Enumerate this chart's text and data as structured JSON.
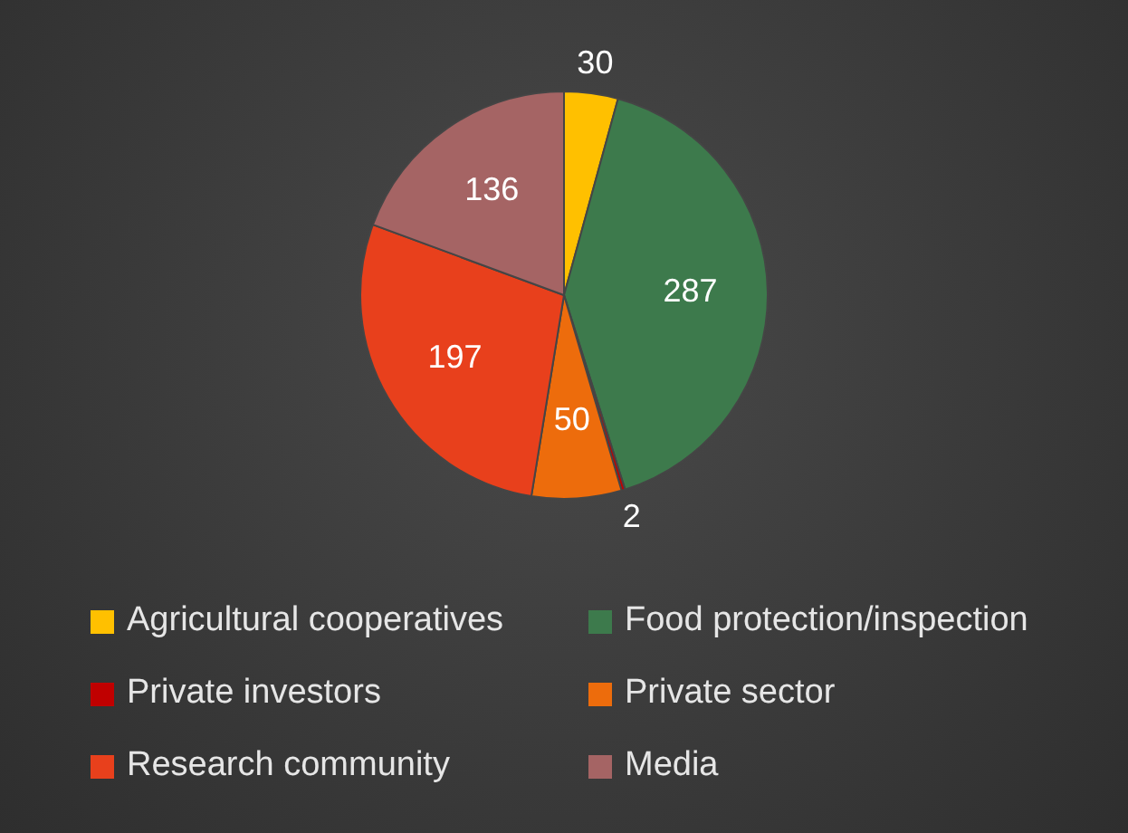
{
  "chart_data": {
    "type": "pie",
    "categories": [
      "Agricultural cooperatives",
      "Food protection/inspection",
      "Private investors",
      "Private sector",
      "Research community",
      "Media"
    ],
    "values": [
      30,
      287,
      2,
      50,
      197,
      136
    ],
    "colors": [
      "#ffc000",
      "#3d7a4c",
      "#c00000",
      "#ed6c0c",
      "#e8401c",
      "#a56464"
    ],
    "data_labels": true,
    "legend": "bottom"
  }
}
